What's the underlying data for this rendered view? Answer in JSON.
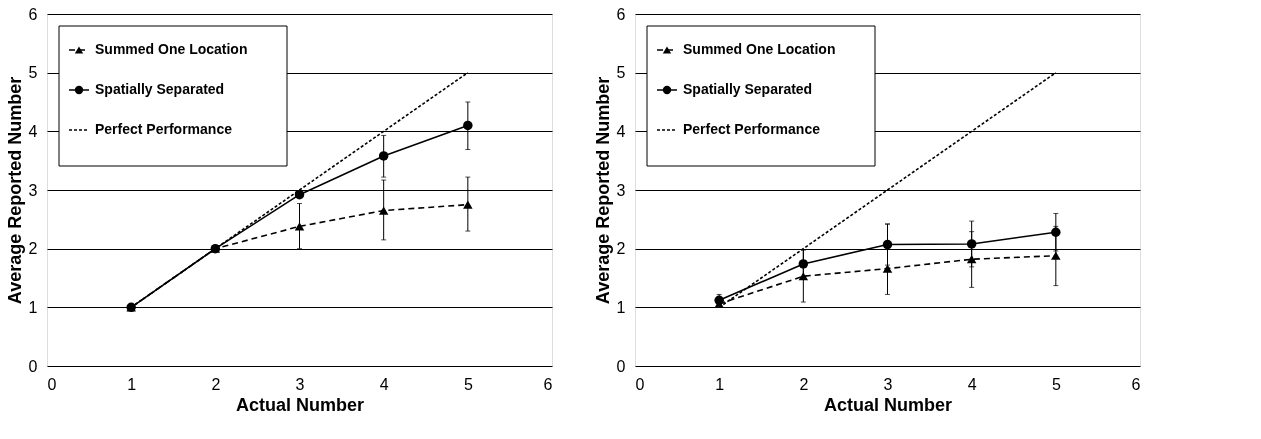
{
  "chart_data": [
    {
      "type": "line",
      "xlabel": "Actual Number",
      "ylabel": "Average Reported Number",
      "x": [
        1,
        2,
        3,
        4,
        5
      ],
      "xlim": [
        0,
        6
      ],
      "xticks": [
        0,
        1,
        2,
        3,
        4,
        5,
        6
      ],
      "ylim": [
        0,
        6
      ],
      "yticks": [
        0,
        1,
        2,
        3,
        4,
        5,
        6
      ],
      "grid": "y",
      "legend": "top left",
      "series": [
        {
          "name": "Summed One Location",
          "color": "#000000",
          "marker": "triangle",
          "line_style": "dashed",
          "values": [
            1,
            2,
            2.38,
            2.65,
            2.75
          ],
          "errors": [
            null,
            null,
            [
              2.0,
              2.77
            ],
            [
              2.15,
              3.17
            ],
            [
              2.3,
              3.22
            ]
          ]
        },
        {
          "name": "Spatially Separated",
          "color": "#000000",
          "marker": "circle",
          "line_style": "solid",
          "values": [
            1,
            2,
            2.92,
            3.58,
            4.1
          ],
          "errors": [
            null,
            null,
            null,
            [
              3.22,
              3.93
            ],
            [
              3.69,
              4.5
            ]
          ]
        },
        {
          "name": "Perfect Performance",
          "color": "#000000",
          "marker": "none",
          "line_style": "dotted",
          "values": [
            1,
            2,
            3,
            4,
            5
          ]
        }
      ]
    },
    {
      "type": "line",
      "xlabel": "Actual Number",
      "ylabel": "Average Reported Number",
      "x": [
        1,
        2,
        3,
        4,
        5
      ],
      "xlim": [
        0,
        6
      ],
      "xticks": [
        0,
        1,
        2,
        3,
        4,
        5,
        6
      ],
      "ylim": [
        0,
        6
      ],
      "yticks": [
        0,
        1,
        2,
        3,
        4,
        5,
        6
      ],
      "grid": "y",
      "legend": "top left",
      "series": [
        {
          "name": "Summed One Location",
          "color": "#000000",
          "marker": "triangle",
          "line_style": "dashed",
          "values": [
            1.06,
            1.53,
            1.66,
            1.82,
            1.88
          ],
          "errors": [
            null,
            [
              1.09,
              1.98
            ],
            [
              1.22,
              2.42
            ],
            [
              1.34,
              2.29
            ],
            [
              1.37,
              2.38
            ]
          ]
        },
        {
          "name": "Spatially Separated",
          "color": "#000000",
          "marker": "circle",
          "line_style": "solid",
          "values": [
            1.12,
            1.74,
            2.07,
            2.08,
            2.28
          ],
          "errors": [
            [
              1.06,
              1.22
            ],
            [
              1.5,
              1.98
            ],
            [
              1.72,
              2.42
            ],
            [
              1.69,
              2.47
            ],
            [
              1.96,
              2.6
            ]
          ]
        },
        {
          "name": "Perfect Performance",
          "color": "#000000",
          "marker": "none",
          "line_style": "dotted",
          "values": [
            1,
            2,
            3,
            4,
            5
          ]
        }
      ]
    }
  ]
}
